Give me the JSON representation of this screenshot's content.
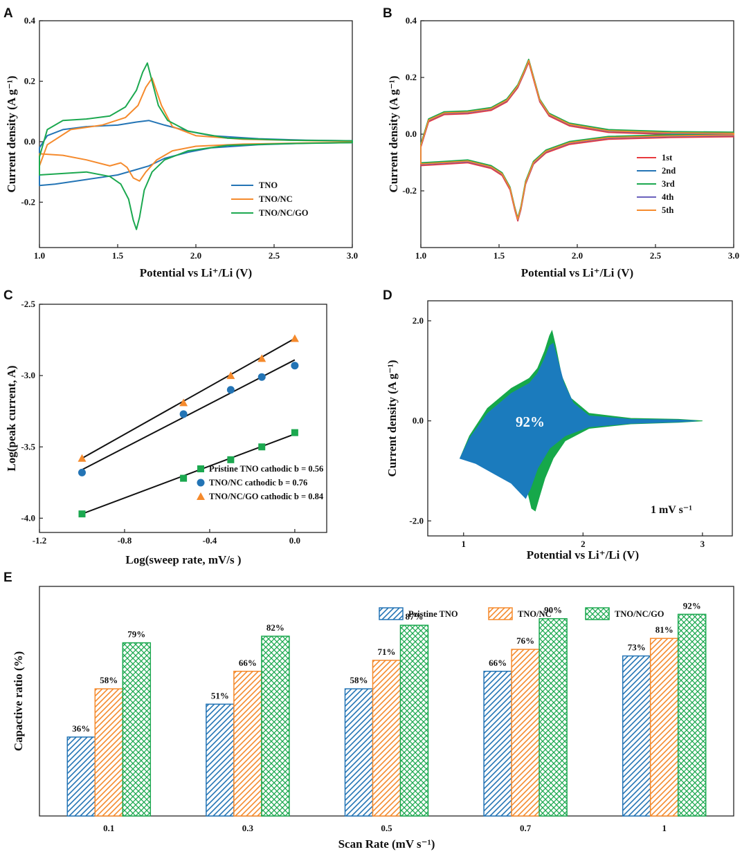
{
  "colors": {
    "blue": "#2374b5",
    "orange": "#f58a2c",
    "green": "#1ba84f",
    "red": "#e8383d",
    "purple": "#6a60bc",
    "fit_line": "#111111",
    "fill_blue": "#1b7bbd",
    "fill_green": "#16a84a"
  },
  "chart_data": [
    {
      "panel": "A",
      "type": "line",
      "title": "",
      "xlabel": "Potential vs Li⁺/Li (V)",
      "ylabel": "Current density (A g⁻¹)",
      "xlim": [
        1.0,
        3.0
      ],
      "ylim": [
        -0.35,
        0.4
      ],
      "xticks": [
        "1.0",
        "1.5",
        "2.0",
        "2.5",
        "3.0"
      ],
      "yticks": [
        "0.4",
        "0.2",
        "0.0",
        "-0.2"
      ],
      "legend": [
        "TNO",
        "TNO/NC",
        "TNO/NC/GO"
      ],
      "legend_position": "bottom-right",
      "series": [
        {
          "name": "TNO",
          "color_key": "blue",
          "x": [
            1.0,
            1.05,
            1.15,
            1.3,
            1.5,
            1.62,
            1.7,
            1.8,
            1.95,
            2.1,
            2.4,
            2.7,
            3.0,
            3.0,
            2.7,
            2.4,
            2.1,
            1.95,
            1.8,
            1.7,
            1.6,
            1.5,
            1.3,
            1.1,
            1.0
          ],
          "y": [
            -0.02,
            0.02,
            0.04,
            0.05,
            0.055,
            0.065,
            0.07,
            0.055,
            0.035,
            0.02,
            0.01,
            0.005,
            0.003,
            -0.003,
            -0.005,
            -0.01,
            -0.02,
            -0.035,
            -0.055,
            -0.08,
            -0.095,
            -0.11,
            -0.125,
            -0.14,
            -0.145
          ]
        },
        {
          "name": "TNO/NC",
          "color_key": "orange",
          "x": [
            1.0,
            1.05,
            1.2,
            1.4,
            1.55,
            1.63,
            1.68,
            1.72,
            1.78,
            1.85,
            2.0,
            2.3,
            2.7,
            3.0,
            3.0,
            2.7,
            2.3,
            2.0,
            1.85,
            1.75,
            1.68,
            1.64,
            1.6,
            1.56,
            1.52,
            1.45,
            1.3,
            1.15,
            1.0
          ],
          "y": [
            -0.08,
            -0.01,
            0.04,
            0.055,
            0.08,
            0.12,
            0.18,
            0.21,
            0.12,
            0.05,
            0.02,
            0.008,
            0.004,
            0.002,
            -0.002,
            -0.004,
            -0.008,
            -0.015,
            -0.03,
            -0.06,
            -0.1,
            -0.13,
            -0.12,
            -0.085,
            -0.07,
            -0.08,
            -0.06,
            -0.045,
            -0.04
          ]
        },
        {
          "name": "TNO/NC/GO",
          "color_key": "green",
          "x": [
            1.0,
            1.05,
            1.15,
            1.3,
            1.45,
            1.55,
            1.62,
            1.66,
            1.69,
            1.72,
            1.76,
            1.82,
            1.95,
            2.2,
            2.6,
            3.0,
            3.0,
            2.6,
            2.2,
            1.95,
            1.8,
            1.72,
            1.67,
            1.64,
            1.62,
            1.6,
            1.57,
            1.52,
            1.45,
            1.3,
            1.15,
            1.0
          ],
          "y": [
            -0.05,
            0.04,
            0.07,
            0.075,
            0.085,
            0.115,
            0.17,
            0.23,
            0.26,
            0.2,
            0.12,
            0.07,
            0.035,
            0.012,
            0.005,
            0.003,
            -0.003,
            -0.006,
            -0.012,
            -0.03,
            -0.06,
            -0.1,
            -0.16,
            -0.25,
            -0.29,
            -0.26,
            -0.19,
            -0.14,
            -0.115,
            -0.1,
            -0.105,
            -0.11
          ]
        }
      ]
    },
    {
      "panel": "B",
      "type": "line",
      "title": "",
      "xlabel": "Potential vs Li⁺/Li (V)",
      "ylabel": "Current density (A g⁻¹)",
      "xlim": [
        1.0,
        3.0
      ],
      "ylim": [
        -0.4,
        0.4
      ],
      "xticks": [
        "1.0",
        "1.5",
        "2.0",
        "2.5",
        "3.0"
      ],
      "yticks": [
        "0.4",
        "0.2",
        "0.0",
        "-0.2"
      ],
      "legend": [
        "1st",
        "2nd",
        "3rd",
        "4th",
        "5th"
      ],
      "legend_position": "bottom-right",
      "series_colors": [
        "red",
        "blue",
        "green",
        "purple",
        "orange"
      ],
      "cycle": {
        "x": [
          1.0,
          1.05,
          1.15,
          1.3,
          1.45,
          1.55,
          1.62,
          1.66,
          1.69,
          1.72,
          1.76,
          1.82,
          1.95,
          2.2,
          2.6,
          3.0,
          3.0,
          2.6,
          2.2,
          1.95,
          1.8,
          1.72,
          1.67,
          1.64,
          1.62,
          1.6,
          1.57,
          1.52,
          1.45,
          1.3,
          1.15,
          1.0
        ],
        "y": [
          -0.04,
          0.05,
          0.075,
          0.078,
          0.09,
          0.12,
          0.17,
          0.22,
          0.26,
          0.2,
          0.12,
          0.07,
          0.035,
          0.012,
          0.005,
          0.003,
          -0.003,
          -0.006,
          -0.012,
          -0.03,
          -0.06,
          -0.1,
          -0.17,
          -0.26,
          -0.3,
          -0.26,
          -0.19,
          -0.14,
          -0.115,
          -0.095,
          -0.1,
          -0.105
        ]
      }
    },
    {
      "panel": "C",
      "type": "scatter",
      "title": "",
      "xlabel": "Log(sweep rate, mV/s )",
      "ylabel": "Log(peak current, A)",
      "xlim": [
        -1.2,
        0.15
      ],
      "ylim": [
        -4.1,
        -2.5
      ],
      "xticks": [
        "-1.2",
        "-0.8",
        "-0.4",
        "0.0"
      ],
      "yticks": [
        "-2.5",
        "-3.0",
        "-3.5",
        "-4.0"
      ],
      "legend_position": "bottom-right",
      "series": [
        {
          "name": "Pristine TNO cathodic b = 0.56",
          "color_key": "green",
          "marker": "square",
          "x": [
            -1.0,
            -0.523,
            -0.301,
            -0.155,
            0.0
          ],
          "y": [
            -3.97,
            -3.72,
            -3.59,
            -3.5,
            -3.4
          ],
          "fit": [
            [
              -1.0,
              -3.97
            ],
            [
              0.0,
              -3.41
            ]
          ]
        },
        {
          "name": "TNO/NC cathodic b = 0.76",
          "color_key": "blue",
          "marker": "circle",
          "x": [
            -1.0,
            -0.523,
            -0.301,
            -0.155,
            0.0
          ],
          "y": [
            -3.68,
            -3.27,
            -3.1,
            -3.01,
            -2.93
          ],
          "fit": [
            [
              -1.0,
              -3.66
            ],
            [
              0.0,
              -2.89
            ]
          ]
        },
        {
          "name": "TNO/NC/GO cathodic b = 0.84",
          "color_key": "orange",
          "marker": "triangle",
          "x": [
            -1.0,
            -0.523,
            -0.301,
            -0.155,
            0.0
          ],
          "y": [
            -3.58,
            -3.19,
            -3.0,
            -2.88,
            -2.74
          ],
          "fit": [
            [
              -1.0,
              -3.58
            ],
            [
              0.0,
              -2.74
            ]
          ]
        }
      ]
    },
    {
      "panel": "D",
      "type": "area",
      "title": "",
      "xlabel": "Potential vs Li⁺/Li (V)",
      "ylabel": "Current density (A g⁻¹)",
      "xlim": [
        0.7,
        3.25
      ],
      "ylim": [
        -2.3,
        2.4
      ],
      "xticks": [
        "1",
        "2",
        "3"
      ],
      "yticks": [
        "2.0",
        "0.0",
        "-2.0"
      ],
      "annotation": "92%",
      "scan_rate_label": "1 mV s⁻¹",
      "total_region": {
        "x": [
          0.97,
          1.05,
          1.2,
          1.4,
          1.55,
          1.62,
          1.68,
          1.72,
          1.74,
          1.77,
          1.82,
          1.9,
          2.05,
          2.4,
          2.8,
          3.0,
          2.8,
          2.4,
          2.05,
          1.85,
          1.75,
          1.68,
          1.63,
          1.6,
          1.57,
          1.54,
          1.45,
          1.3,
          1.1,
          0.97
        ],
        "y": [
          -0.75,
          -0.3,
          0.25,
          0.65,
          0.85,
          1.05,
          1.4,
          1.7,
          1.8,
          1.5,
          0.9,
          0.45,
          0.15,
          0.05,
          0.03,
          0.0,
          -0.03,
          -0.06,
          -0.15,
          -0.4,
          -0.75,
          -1.15,
          -1.55,
          -1.8,
          -1.75,
          -1.45,
          -1.2,
          -1.0,
          -0.8,
          -0.75
        ]
      },
      "capacitive_region": {
        "x": [
          0.97,
          1.05,
          1.2,
          1.4,
          1.55,
          1.62,
          1.68,
          1.72,
          1.75,
          1.79,
          1.84,
          1.92,
          2.05,
          2.4,
          2.8,
          2.95,
          2.8,
          2.4,
          2.05,
          1.85,
          1.72,
          1.62,
          1.56,
          1.52,
          1.48,
          1.4,
          1.25,
          1.1,
          0.97
        ],
        "y": [
          -0.75,
          -0.35,
          0.15,
          0.55,
          0.75,
          0.95,
          1.25,
          1.5,
          1.55,
          1.2,
          0.75,
          0.35,
          0.1,
          0.03,
          0.02,
          0.0,
          -0.02,
          -0.05,
          -0.12,
          -0.3,
          -0.55,
          -0.95,
          -1.35,
          -1.55,
          -1.45,
          -1.25,
          -1.05,
          -0.85,
          -0.75
        ]
      }
    },
    {
      "panel": "E",
      "type": "bar",
      "title": "",
      "xlabel": "Scan Rate (mV s⁻¹)",
      "ylabel": "Capactive ratio (%)",
      "ylim": [
        0,
        100
      ],
      "categories": [
        "0.1",
        "0.3",
        "0.5",
        "0.7",
        "1"
      ],
      "legend_position": "top-right",
      "series": [
        {
          "name": "Pristine TNO",
          "color_key": "blue",
          "pattern": "diagonal",
          "values": [
            36,
            51,
            58,
            66,
            73
          ],
          "labels": [
            "36%",
            "51%",
            "58%",
            "66%",
            "73%"
          ]
        },
        {
          "name": "TNO/NC",
          "color_key": "orange",
          "pattern": "diagonal",
          "values": [
            58,
            66,
            71,
            76,
            81
          ],
          "labels": [
            "58%",
            "66%",
            "71%",
            "76%",
            "81%"
          ]
        },
        {
          "name": "TNO/NC/GO",
          "color_key": "green",
          "pattern": "crosshatch",
          "values": [
            79,
            82,
            87,
            90,
            92
          ],
          "labels": [
            "79%",
            "82%",
            "87%",
            "90%",
            "92%"
          ]
        }
      ]
    }
  ]
}
